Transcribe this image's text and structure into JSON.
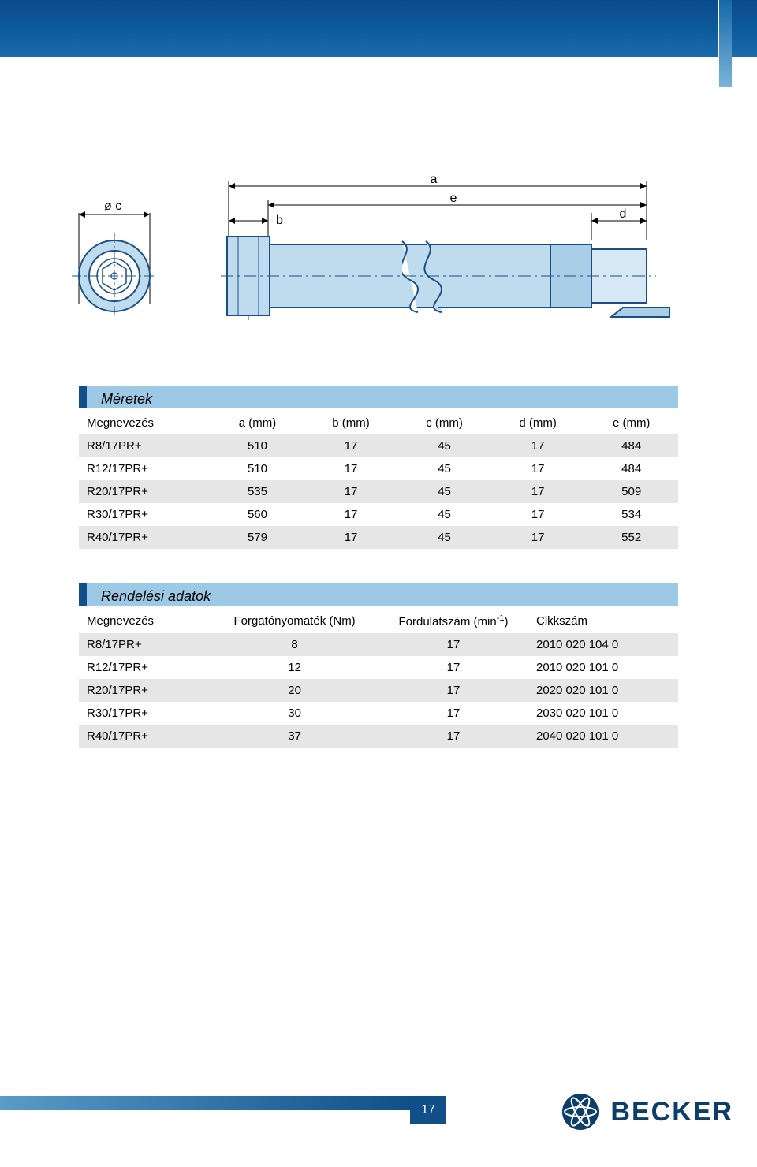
{
  "diagram": {
    "labels": {
      "diameter": "ø c",
      "a": "a",
      "b": "b",
      "d": "d",
      "e": "e"
    },
    "colors": {
      "outline": "#1c4f85",
      "fill_light": "#bfdcef",
      "fill_med": "#a9cfe8",
      "centerline": "#1c4f85",
      "white": "#ffffff"
    }
  },
  "dimensions_table": {
    "title": "Méretek",
    "columns": [
      "Megnevezés",
      "a (mm)",
      "b (mm)",
      "c (mm)",
      "d (mm)",
      "e (mm)"
    ],
    "rows": [
      [
        "R8/17PR+",
        "510",
        "17",
        "45",
        "17",
        "484"
      ],
      [
        "R12/17PR+",
        "510",
        "17",
        "45",
        "17",
        "484"
      ],
      [
        "R20/17PR+",
        "535",
        "17",
        "45",
        "17",
        "509"
      ],
      [
        "R30/17PR+",
        "560",
        "17",
        "45",
        "17",
        "534"
      ],
      [
        "R40/17PR+",
        "579",
        "17",
        "45",
        "17",
        "552"
      ]
    ]
  },
  "order_table": {
    "title": "Rendelési adatok",
    "columns": [
      "Megnevezés",
      "Forgatónyomaték (Nm)",
      "Fordulatszám (min⁻¹)",
      "Cikkszám"
    ],
    "col_plain_2": "Fordulatszám (min",
    "col_plain_2_sup": "-1",
    "col_plain_2_end": ")",
    "rows": [
      [
        "R8/17PR+",
        "8",
        "17",
        "2010 020 104 0"
      ],
      [
        "R12/17PR+",
        "12",
        "17",
        "2010 020 101 0"
      ],
      [
        "R20/17PR+",
        "20",
        "17",
        "2020 020 101 0"
      ],
      [
        "R30/17PR+",
        "30",
        "17",
        "2030 020 101 0"
      ],
      [
        "R40/17PR+",
        "37",
        "17",
        "2040 020 101 0"
      ]
    ]
  },
  "footer": {
    "page_number": "17",
    "brand": "BECKER"
  },
  "style": {
    "header_bg": "#9cc9e6",
    "header_accent": "#104f88",
    "row_odd_bg": "#e6e6e6",
    "row_even_bg": "#ffffff",
    "brand_color": "#0d3e6a",
    "top_bar_gradient": [
      "#0a4a8a",
      "#1a6aac"
    ]
  }
}
